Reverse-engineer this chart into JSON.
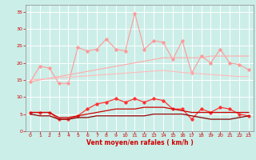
{
  "x": [
    0,
    1,
    2,
    3,
    4,
    5,
    6,
    7,
    8,
    9,
    10,
    11,
    12,
    13,
    14,
    15,
    16,
    17,
    18,
    19,
    20,
    21,
    22,
    23
  ],
  "series": [
    {
      "color": "#ff9999",
      "linewidth": 0.8,
      "marker": "D",
      "markersize": 1.8,
      "values": [
        14.5,
        19.0,
        18.5,
        14.0,
        14.0,
        24.5,
        23.5,
        24.0,
        27.0,
        24.0,
        23.5,
        34.5,
        24.0,
        26.5,
        26.0,
        21.0,
        26.5,
        17.0,
        22.0,
        20.0,
        24.0,
        20.0,
        19.5,
        18.0
      ]
    },
    {
      "color": "#ffaaaa",
      "linewidth": 0.8,
      "marker": null,
      "markersize": 0,
      "values": [
        14.5,
        15.0,
        15.5,
        16.0,
        16.5,
        17.0,
        17.5,
        18.0,
        18.5,
        19.0,
        19.5,
        20.0,
        20.5,
        21.0,
        21.5,
        21.5,
        21.5,
        21.5,
        21.5,
        22.0,
        22.0,
        22.0,
        22.0,
        22.0
      ]
    },
    {
      "color": "#ffbbbb",
      "linewidth": 0.8,
      "marker": null,
      "markersize": 0,
      "values": [
        15.0,
        15.2,
        15.4,
        15.6,
        15.8,
        16.0,
        16.2,
        16.4,
        16.6,
        16.8,
        17.0,
        17.2,
        17.4,
        17.6,
        17.8,
        17.5,
        17.2,
        17.0,
        16.8,
        16.6,
        16.4,
        16.2,
        16.0,
        16.0
      ]
    },
    {
      "color": "#ff3333",
      "linewidth": 0.9,
      "marker": "D",
      "markersize": 1.8,
      "values": [
        5.5,
        5.5,
        5.5,
        3.5,
        3.5,
        4.5,
        6.5,
        8.0,
        8.5,
        9.5,
        8.5,
        9.5,
        8.5,
        9.5,
        9.0,
        6.5,
        6.5,
        3.5,
        6.5,
        5.5,
        7.0,
        6.5,
        5.0,
        4.5
      ]
    },
    {
      "color": "#cc0000",
      "linewidth": 0.9,
      "marker": null,
      "markersize": 0,
      "values": [
        5.5,
        5.5,
        5.5,
        4.0,
        4.0,
        4.5,
        5.0,
        5.5,
        6.0,
        6.5,
        6.5,
        6.5,
        7.0,
        7.0,
        7.0,
        6.5,
        6.0,
        5.5,
        5.5,
        5.5,
        5.5,
        5.5,
        5.5,
        5.5
      ]
    },
    {
      "color": "#880000",
      "linewidth": 0.9,
      "marker": null,
      "markersize": 0,
      "values": [
        5.0,
        4.5,
        4.5,
        3.5,
        3.5,
        4.0,
        4.0,
        4.5,
        4.5,
        4.5,
        4.5,
        4.5,
        4.5,
        5.0,
        5.0,
        5.0,
        5.0,
        4.5,
        4.0,
        3.5,
        3.5,
        3.5,
        4.0,
        4.5
      ]
    }
  ],
  "xlim": [
    -0.5,
    23.5
  ],
  "ylim": [
    0,
    37
  ],
  "yticks": [
    0,
    5,
    10,
    15,
    20,
    25,
    30,
    35
  ],
  "xticks": [
    0,
    1,
    2,
    3,
    4,
    5,
    6,
    7,
    8,
    9,
    10,
    11,
    12,
    13,
    14,
    15,
    16,
    17,
    18,
    19,
    20,
    21,
    22,
    23
  ],
  "xlabel": "Vent moyen/en rafales ( km/h )",
  "background_color": "#cceee8",
  "grid_color": "#ffffff",
  "tick_color": "#cc0000",
  "label_color": "#cc0000"
}
